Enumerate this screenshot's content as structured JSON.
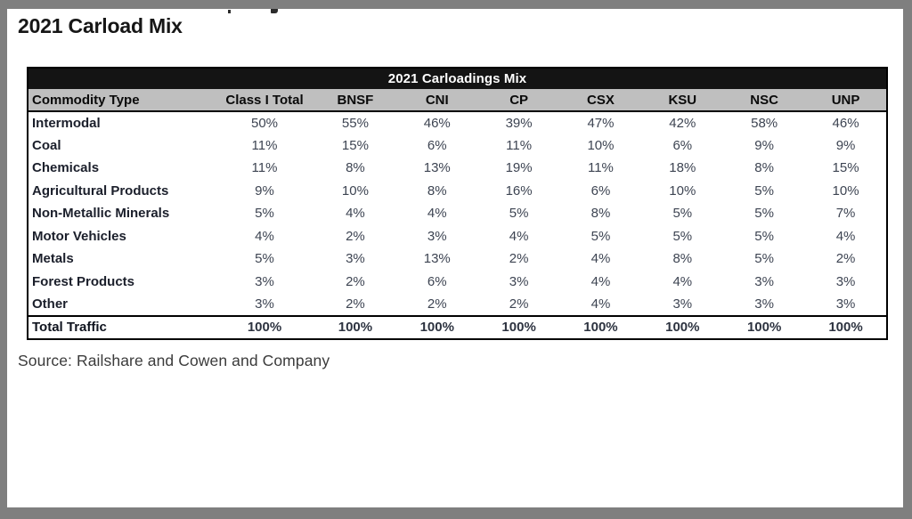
{
  "page": {
    "title": "2021 Carload Mix",
    "source": "Source: Railshare and Cowen and Company"
  },
  "table": {
    "title": "2021 Carloadings Mix",
    "columns": [
      "Commodity Type",
      "Class I Total",
      "BNSF",
      "CNI",
      "CP",
      "CSX",
      "KSU",
      "NSC",
      "UNP"
    ],
    "rows": [
      {
        "label": "Intermodal",
        "values": [
          "50%",
          "55%",
          "46%",
          "39%",
          "47%",
          "42%",
          "58%",
          "46%"
        ]
      },
      {
        "label": "Coal",
        "values": [
          "11%",
          "15%",
          "6%",
          "11%",
          "10%",
          "6%",
          "9%",
          "9%"
        ]
      },
      {
        "label": "Chemicals",
        "values": [
          "11%",
          "8%",
          "13%",
          "19%",
          "11%",
          "18%",
          "8%",
          "15%"
        ]
      },
      {
        "label": "Agricultural Products",
        "values": [
          "9%",
          "10%",
          "8%",
          "16%",
          "6%",
          "10%",
          "5%",
          "10%"
        ]
      },
      {
        "label": "Non-Metallic Minerals",
        "values": [
          "5%",
          "4%",
          "4%",
          "5%",
          "8%",
          "5%",
          "5%",
          "7%"
        ]
      },
      {
        "label": "Motor Vehicles",
        "values": [
          "4%",
          "2%",
          "3%",
          "4%",
          "5%",
          "5%",
          "5%",
          "4%"
        ]
      },
      {
        "label": "Metals",
        "values": [
          "5%",
          "3%",
          "13%",
          "2%",
          "4%",
          "8%",
          "5%",
          "2%"
        ]
      },
      {
        "label": "Forest Products",
        "values": [
          "3%",
          "2%",
          "6%",
          "3%",
          "4%",
          "4%",
          "3%",
          "3%"
        ]
      },
      {
        "label": "Other",
        "values": [
          "3%",
          "2%",
          "2%",
          "2%",
          "4%",
          "3%",
          "3%",
          "3%"
        ]
      }
    ],
    "total_row": {
      "label": "Total Traffic",
      "values": [
        "100%",
        "100%",
        "100%",
        "100%",
        "100%",
        "100%",
        "100%",
        "100%"
      ]
    }
  },
  "chart_data": {
    "type": "table",
    "title": "2021 Carloadings Mix",
    "categories": [
      "Intermodal",
      "Coal",
      "Chemicals",
      "Agricultural Products",
      "Non-Metallic Minerals",
      "Motor Vehicles",
      "Metals",
      "Forest Products",
      "Other",
      "Total Traffic"
    ],
    "series": [
      {
        "name": "Class I Total",
        "values": [
          50,
          11,
          11,
          9,
          5,
          4,
          5,
          3,
          3,
          100
        ]
      },
      {
        "name": "BNSF",
        "values": [
          55,
          15,
          8,
          10,
          4,
          2,
          3,
          2,
          2,
          100
        ]
      },
      {
        "name": "CNI",
        "values": [
          46,
          6,
          13,
          8,
          4,
          3,
          13,
          6,
          2,
          100
        ]
      },
      {
        "name": "CP",
        "values": [
          39,
          11,
          19,
          16,
          5,
          4,
          2,
          3,
          2,
          100
        ]
      },
      {
        "name": "CSX",
        "values": [
          47,
          10,
          11,
          6,
          8,
          5,
          4,
          4,
          4,
          100
        ]
      },
      {
        "name": "KSU",
        "values": [
          42,
          6,
          18,
          10,
          5,
          5,
          8,
          4,
          3,
          100
        ]
      },
      {
        "name": "NSC",
        "values": [
          58,
          9,
          8,
          5,
          5,
          5,
          5,
          3,
          3,
          100
        ]
      },
      {
        "name": "UNP",
        "values": [
          46,
          9,
          15,
          10,
          7,
          4,
          2,
          3,
          3,
          100
        ]
      }
    ],
    "unit": "%"
  },
  "colors": {
    "frame_gray": "#7f7f7f",
    "table_title_bg": "#141414",
    "table_header_bg": "#bfbfbf",
    "value_text": "#3d4452",
    "label_text": "#1b1f2b"
  }
}
